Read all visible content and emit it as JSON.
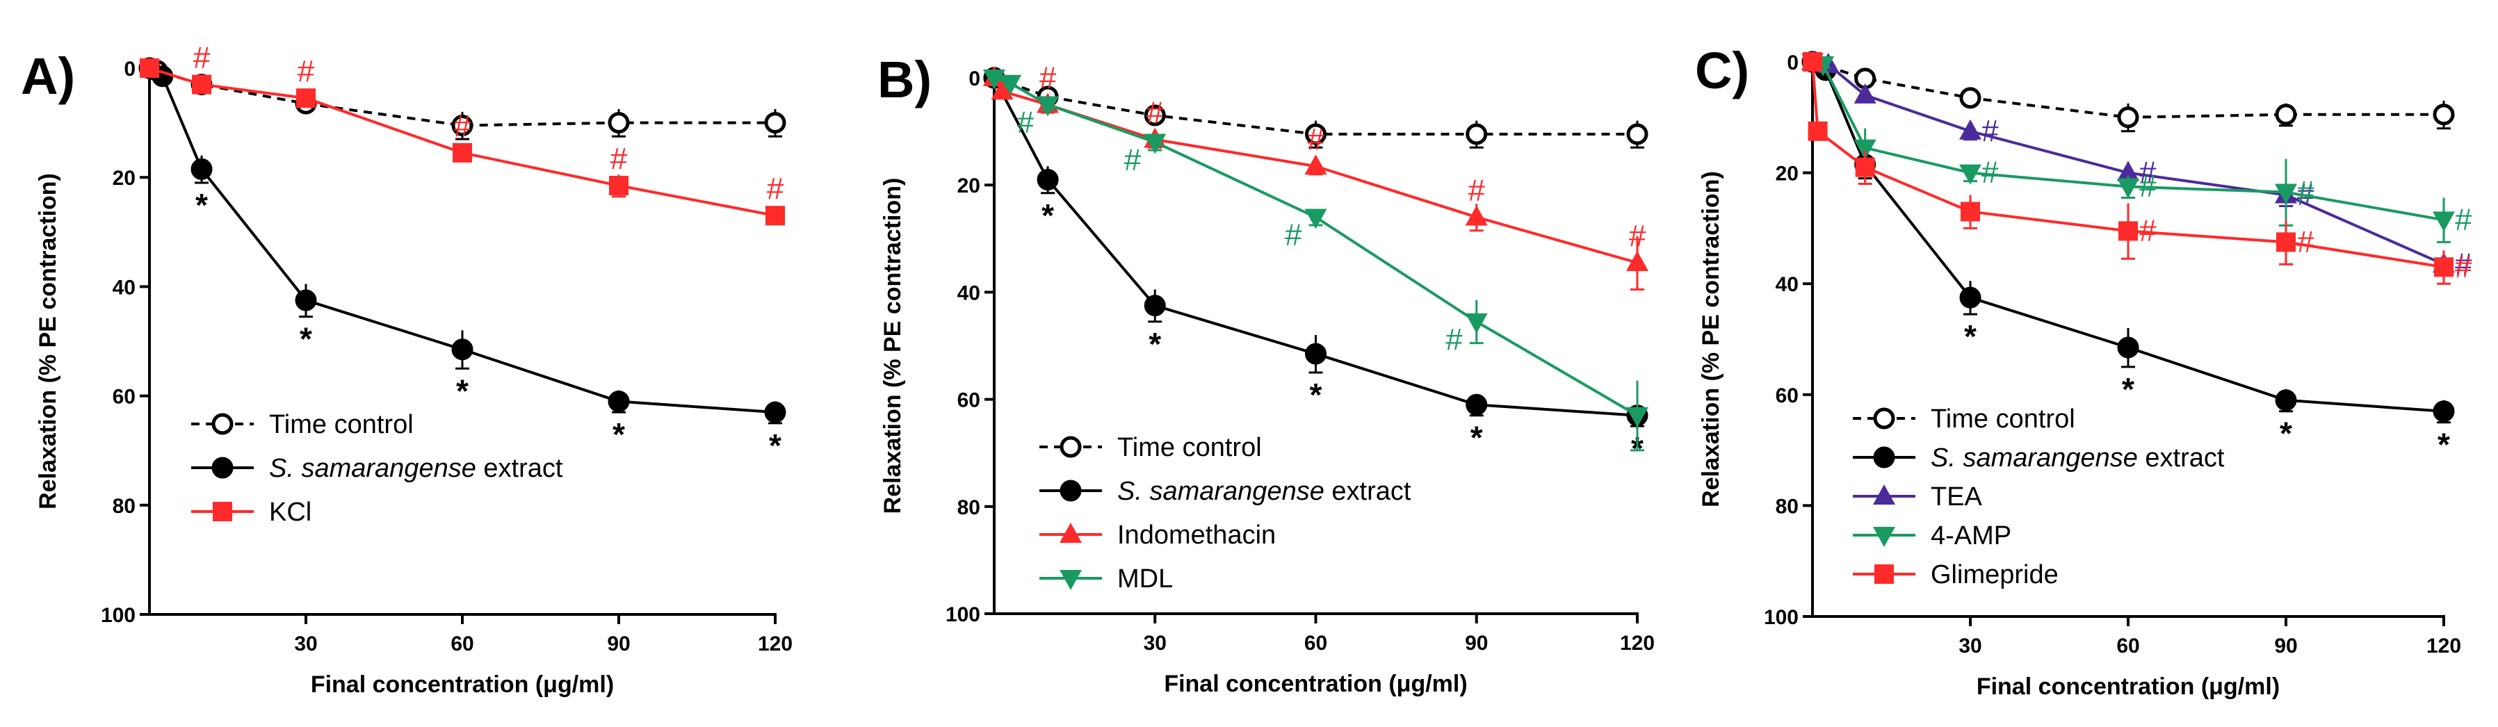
{
  "chart_data": [
    {
      "panel": "A)",
      "type": "line",
      "xlabel": "Final concentration (μg/ml)",
      "ylabel": "Relaxation (% PE contraction)",
      "xlim": [
        0,
        120
      ],
      "ylim": [
        0,
        100
      ],
      "y_inverted": true,
      "xticks": [
        30,
        60,
        90,
        120
      ],
      "yticks": [
        0,
        20,
        40,
        60,
        80,
        100
      ],
      "legend_position": "bottom-left",
      "series": [
        {
          "name": "Time control",
          "legend_plain": "Time control",
          "legend_italic": "",
          "marker": "circle-open",
          "line": "dashed",
          "color": "#000000",
          "points": [
            {
              "x": 0,
              "y": 0,
              "err": 0
            },
            {
              "x": 1.5,
              "y": 0.5,
              "err": 0.5
            },
            {
              "x": 10,
              "y": 3,
              "err": 1
            },
            {
              "x": 30,
              "y": 6.5,
              "err": 1
            },
            {
              "x": 60,
              "y": 10.5,
              "err": 2.5
            },
            {
              "x": 90,
              "y": 10,
              "err": 2.5
            },
            {
              "x": 120,
              "y": 10,
              "err": 2.5
            }
          ],
          "annotations": []
        },
        {
          "name": "S. samarangense extract",
          "legend_plain": " extract",
          "legend_italic": "S. samarangense",
          "marker": "circle",
          "line": "solid",
          "color": "#000000",
          "points": [
            {
              "x": 0,
              "y": 0,
              "err": 0
            },
            {
              "x": 2.5,
              "y": 1.5,
              "err": 0.5
            },
            {
              "x": 10,
              "y": 18.5,
              "err": 2.5
            },
            {
              "x": 30,
              "y": 42.5,
              "err": 3
            },
            {
              "x": 60,
              "y": 51.5,
              "err": 3.5
            },
            {
              "x": 90,
              "y": 61,
              "err": 2
            },
            {
              "x": 120,
              "y": 63,
              "err": 2
            }
          ],
          "annotations": [
            {
              "x": 10,
              "text": "*"
            },
            {
              "x": 30,
              "text": "*"
            },
            {
              "x": 60,
              "text": "*"
            },
            {
              "x": 90,
              "text": "*"
            },
            {
              "x": 120,
              "text": "*"
            }
          ]
        },
        {
          "name": "KCl",
          "legend_plain": "KCl",
          "legend_italic": "",
          "marker": "square",
          "line": "solid",
          "color": "#ff2a2a",
          "points": [
            {
              "x": 0,
              "y": 0,
              "err": 0
            },
            {
              "x": 10,
              "y": 3,
              "err": 1
            },
            {
              "x": 30,
              "y": 5.5,
              "err": 1
            },
            {
              "x": 60,
              "y": 15.5,
              "err": 1.5
            },
            {
              "x": 90,
              "y": 21.5,
              "err": 2
            },
            {
              "x": 120,
              "y": 27,
              "err": 1.5
            }
          ],
          "annotations": [
            {
              "x": 10,
              "text": "#"
            },
            {
              "x": 30,
              "text": "#"
            },
            {
              "x": 60,
              "text": "#"
            },
            {
              "x": 90,
              "text": "#"
            },
            {
              "x": 120,
              "text": "#"
            }
          ]
        }
      ]
    },
    {
      "panel": "B)",
      "type": "line",
      "xlabel": "Final concentration (μg/ml)",
      "ylabel": "Relaxation (% PE contraction)",
      "xlim": [
        0,
        120
      ],
      "ylim": [
        0,
        100
      ],
      "y_inverted": true,
      "xticks": [
        30,
        60,
        90,
        120
      ],
      "yticks": [
        0,
        20,
        40,
        60,
        80,
        100
      ],
      "legend_position": "bottom-left",
      "series": [
        {
          "name": "Time control",
          "legend_plain": "Time control",
          "legend_italic": "",
          "marker": "circle-open",
          "line": "dashed",
          "color": "#000000",
          "points": [
            {
              "x": 0,
              "y": 0,
              "err": 0
            },
            {
              "x": 10,
              "y": 3.5,
              "err": 1
            },
            {
              "x": 30,
              "y": 7,
              "err": 1
            },
            {
              "x": 60,
              "y": 10.5,
              "err": 2.5
            },
            {
              "x": 90,
              "y": 10.5,
              "err": 2.5
            },
            {
              "x": 120,
              "y": 10.5,
              "err": 2.5
            }
          ],
          "annotations": []
        },
        {
          "name": "S. samarangense extract",
          "legend_plain": " extract",
          "legend_italic": "S. samarangense",
          "marker": "circle",
          "line": "solid",
          "color": "#000000",
          "points": [
            {
              "x": 0,
              "y": 0,
              "err": 0
            },
            {
              "x": 10,
              "y": 19,
              "err": 2.5
            },
            {
              "x": 30,
              "y": 42.5,
              "err": 3
            },
            {
              "x": 60,
              "y": 51.5,
              "err": 3.5
            },
            {
              "x": 90,
              "y": 61,
              "err": 2
            },
            {
              "x": 120,
              "y": 63,
              "err": 2
            }
          ],
          "annotations": [
            {
              "x": 10,
              "text": "*"
            },
            {
              "x": 30,
              "text": "*"
            },
            {
              "x": 60,
              "text": "*"
            },
            {
              "x": 90,
              "text": "*"
            },
            {
              "x": 120,
              "text": "*"
            }
          ]
        },
        {
          "name": "Indomethacin",
          "legend_plain": "Indomethacin",
          "legend_italic": "",
          "marker": "triangle-up",
          "line": "solid",
          "color": "#ff2a2a",
          "points": [
            {
              "x": 0,
              "y": 0,
              "err": 0
            },
            {
              "x": 1.5,
              "y": 2.5,
              "err": 1
            },
            {
              "x": 10,
              "y": 5,
              "err": 1.5
            },
            {
              "x": 30,
              "y": 11.5,
              "err": 1.5
            },
            {
              "x": 60,
              "y": 16.5,
              "err": 1.5
            },
            {
              "x": 90,
              "y": 26,
              "err": 2.5
            },
            {
              "x": 120,
              "y": 34.5,
              "err": 5
            }
          ],
          "annotations": [
            {
              "x": 10,
              "text": "#"
            },
            {
              "x": 30,
              "text": "#"
            },
            {
              "x": 60,
              "text": "#"
            },
            {
              "x": 90,
              "text": "#"
            },
            {
              "x": 120,
              "text": "#"
            }
          ]
        },
        {
          "name": "MDL",
          "legend_plain": "MDL",
          "legend_italic": "",
          "marker": "triangle-down",
          "line": "solid",
          "color": "#1a9a63",
          "points": [
            {
              "x": 0,
              "y": 0,
              "err": 0
            },
            {
              "x": 3,
              "y": 1,
              "err": 0.5
            },
            {
              "x": 10,
              "y": 5,
              "err": 1
            },
            {
              "x": 30,
              "y": 12,
              "err": 1.5
            },
            {
              "x": 60,
              "y": 26,
              "err": 1.5
            },
            {
              "x": 90,
              "y": 45.5,
              "err": 4
            },
            {
              "x": 120,
              "y": 63,
              "err": 6.5
            }
          ],
          "annotations": [
            {
              "x": 10,
              "text": "#"
            },
            {
              "x": 30,
              "text": "#"
            },
            {
              "x": 60,
              "text": "#"
            },
            {
              "x": 90,
              "text": "#"
            }
          ]
        }
      ]
    },
    {
      "panel": "C)",
      "type": "line",
      "xlabel": "Final concentration (μg/ml)",
      "ylabel": "Relaxation (% PE contraction)",
      "xlim": [
        0,
        120
      ],
      "ylim": [
        0,
        100
      ],
      "y_inverted": true,
      "xticks": [
        30,
        60,
        90,
        120
      ],
      "yticks": [
        0,
        20,
        40,
        60,
        80,
        100
      ],
      "legend_position": "bottom-left",
      "series": [
        {
          "name": "Time control",
          "legend_plain": "Time control",
          "legend_italic": "",
          "marker": "circle-open",
          "line": "dashed",
          "color": "#000000",
          "points": [
            {
              "x": 0,
              "y": 0,
              "err": 0
            },
            {
              "x": 10,
              "y": 3,
              "err": 1
            },
            {
              "x": 30,
              "y": 6.5,
              "err": 1
            },
            {
              "x": 60,
              "y": 10,
              "err": 2.5
            },
            {
              "x": 90,
              "y": 9.5,
              "err": 2
            },
            {
              "x": 120,
              "y": 9.5,
              "err": 2.5
            }
          ],
          "annotations": []
        },
        {
          "name": "S. samarangense extract",
          "legend_plain": " extract",
          "legend_italic": "S. samarangense",
          "marker": "circle",
          "line": "solid",
          "color": "#000000",
          "points": [
            {
              "x": 0,
              "y": 0,
              "err": 0
            },
            {
              "x": 2.5,
              "y": 1.5,
              "err": 0.5
            },
            {
              "x": 10,
              "y": 18.5,
              "err": 2.5
            },
            {
              "x": 30,
              "y": 42.5,
              "err": 3
            },
            {
              "x": 60,
              "y": 51.5,
              "err": 3.5
            },
            {
              "x": 90,
              "y": 61,
              "err": 2
            },
            {
              "x": 120,
              "y": 63,
              "err": 2
            }
          ],
          "annotations": [
            {
              "x": 30,
              "text": "*"
            },
            {
              "x": 60,
              "text": "*"
            },
            {
              "x": 90,
              "text": "*"
            },
            {
              "x": 120,
              "text": "*"
            }
          ]
        },
        {
          "name": "TEA",
          "legend_plain": "TEA",
          "legend_italic": "",
          "marker": "triangle-up",
          "line": "solid",
          "color": "#4b2a9b",
          "points": [
            {
              "x": 0,
              "y": 0,
              "err": 0
            },
            {
              "x": 3,
              "y": 0.5,
              "err": 0.5
            },
            {
              "x": 10,
              "y": 6,
              "err": 1
            },
            {
              "x": 30,
              "y": 12.5,
              "err": 1.5
            },
            {
              "x": 60,
              "y": 20,
              "err": 2
            },
            {
              "x": 90,
              "y": 24,
              "err": 2
            },
            {
              "x": 120,
              "y": 36.5,
              "err": 2
            }
          ],
          "annotations": [
            {
              "x": 30,
              "text": "#"
            },
            {
              "x": 60,
              "text": "#"
            },
            {
              "x": 90,
              "text": "#"
            },
            {
              "x": 120,
              "text": "#"
            }
          ]
        },
        {
          "name": "4-AMP",
          "legend_plain": "4-AMP",
          "legend_italic": "",
          "marker": "triangle-down",
          "line": "solid",
          "color": "#1a9a63",
          "points": [
            {
              "x": 0,
              "y": 0,
              "err": 0
            },
            {
              "x": 2,
              "y": 0.5,
              "err": 0.5
            },
            {
              "x": 10,
              "y": 15.5,
              "err": 3.5
            },
            {
              "x": 30,
              "y": 20,
              "err": 1.5
            },
            {
              "x": 60,
              "y": 22.5,
              "err": 2
            },
            {
              "x": 90,
              "y": 23.5,
              "err": 6
            },
            {
              "x": 120,
              "y": 28.5,
              "err": 4
            }
          ],
          "annotations": [
            {
              "x": 30,
              "text": "#"
            },
            {
              "x": 60,
              "text": "#"
            },
            {
              "x": 90,
              "text": "#"
            },
            {
              "x": 120,
              "text": "#"
            }
          ]
        },
        {
          "name": "Glimepride",
          "legend_plain": "Glimepride",
          "legend_italic": "",
          "marker": "square",
          "line": "solid",
          "color": "#ff2a2a",
          "points": [
            {
              "x": 0,
              "y": 0,
              "err": 0
            },
            {
              "x": 1,
              "y": 12.5,
              "err": 1
            },
            {
              "x": 10,
              "y": 19,
              "err": 3
            },
            {
              "x": 30,
              "y": 27,
              "err": 3
            },
            {
              "x": 60,
              "y": 30.5,
              "err": 5
            },
            {
              "x": 90,
              "y": 32.5,
              "err": 4
            },
            {
              "x": 120,
              "y": 37,
              "err": 3
            }
          ],
          "annotations": [
            {
              "x": 60,
              "text": "#"
            },
            {
              "x": 90,
              "text": "#"
            },
            {
              "x": 120,
              "text": "#"
            }
          ]
        }
      ]
    }
  ]
}
